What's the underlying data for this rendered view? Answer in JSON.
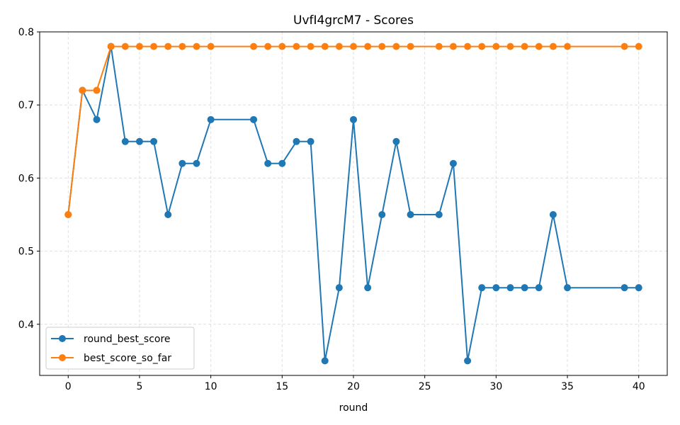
{
  "chart_data": {
    "type": "line",
    "title": "UvfI4grcM7 - Scores",
    "xlabel": "round",
    "ylabel": "",
    "xlim": [
      -2,
      42
    ],
    "ylim": [
      0.33,
      0.8
    ],
    "xticks": [
      0,
      5,
      10,
      15,
      20,
      25,
      30,
      35,
      40
    ],
    "yticks": [
      0.4,
      0.5,
      0.6,
      0.7,
      0.8
    ],
    "grid": true,
    "legend_position": "bottom-left",
    "x": [
      0,
      1,
      2,
      3,
      4,
      5,
      6,
      7,
      8,
      9,
      10,
      13,
      14,
      15,
      16,
      17,
      18,
      19,
      20,
      21,
      22,
      23,
      24,
      26,
      27,
      28,
      29,
      30,
      31,
      32,
      33,
      34,
      35,
      39,
      40
    ],
    "series": [
      {
        "name": "round_best_score",
        "color": "#1f77b4",
        "values": [
          0.55,
          0.72,
          0.68,
          0.78,
          0.65,
          0.65,
          0.65,
          0.55,
          0.62,
          0.62,
          0.68,
          0.68,
          0.62,
          0.62,
          0.65,
          0.65,
          0.35,
          0.45,
          0.68,
          0.45,
          0.55,
          0.65,
          0.55,
          0.55,
          0.62,
          0.35,
          0.45,
          0.45,
          0.45,
          0.45,
          0.45,
          0.55,
          0.45,
          0.45,
          0.45
        ]
      },
      {
        "name": "best_score_so_far",
        "color": "#ff7f0e",
        "values": [
          0.55,
          0.72,
          0.72,
          0.78,
          0.78,
          0.78,
          0.78,
          0.78,
          0.78,
          0.78,
          0.78,
          0.78,
          0.78,
          0.78,
          0.78,
          0.78,
          0.78,
          0.78,
          0.78,
          0.78,
          0.78,
          0.78,
          0.78,
          0.78,
          0.78,
          0.78,
          0.78,
          0.78,
          0.78,
          0.78,
          0.78,
          0.78,
          0.78,
          0.78,
          0.78
        ]
      }
    ]
  }
}
